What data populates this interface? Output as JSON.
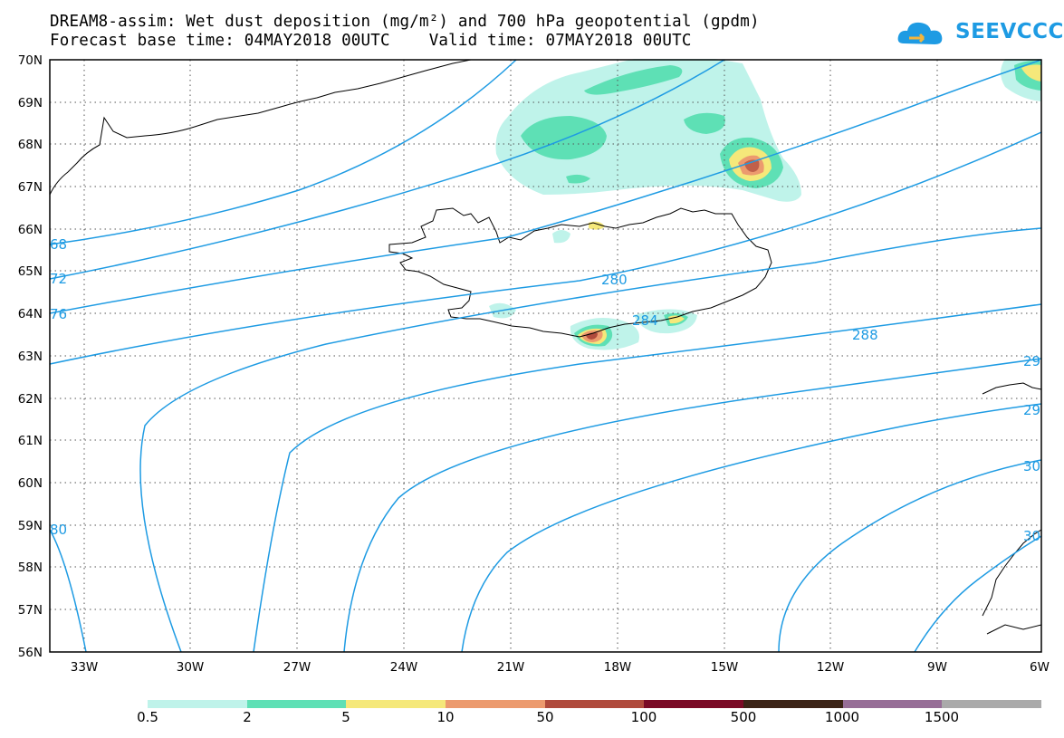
{
  "title": {
    "line1": "DREAM8-assim: Wet dust deposition (mg/m²) and 700 hPa geopotential (gpdm)",
    "line2": "Forecast base time: 04MAY2018 00UTC    Valid time: 07MAY2018 00UTC"
  },
  "logo": {
    "text": "SEEVCCC",
    "icon": "cloud-icon",
    "color": "#1e9be3"
  },
  "map": {
    "lat_labels": [
      "70N",
      "69N",
      "68N",
      "67N",
      "66N",
      "65N",
      "64N",
      "63N",
      "62N",
      "61N",
      "60N",
      "59N",
      "58N",
      "57N",
      "56N"
    ],
    "lon_labels": [
      "33W",
      "30W",
      "27W",
      "24W",
      "21W",
      "18W",
      "15W",
      "12W",
      "9W",
      "6W"
    ],
    "contour_labels": [
      "68",
      "72",
      "76",
      "280",
      "284",
      "288",
      "29",
      "29",
      "30",
      "30",
      "80"
    ],
    "contour_color": "#1e9be3"
  },
  "legend": {
    "colors": [
      "#bff3ea",
      "#5ee0b5",
      "#f5e87a",
      "#ec9a6e",
      "#b04a3c",
      "#7a0a25",
      "#3b2316",
      "#976e97",
      "#aaaaaa"
    ],
    "labels": [
      "0.5",
      "2",
      "5",
      "10",
      "50",
      "100",
      "500",
      "1000",
      "1500"
    ]
  }
}
